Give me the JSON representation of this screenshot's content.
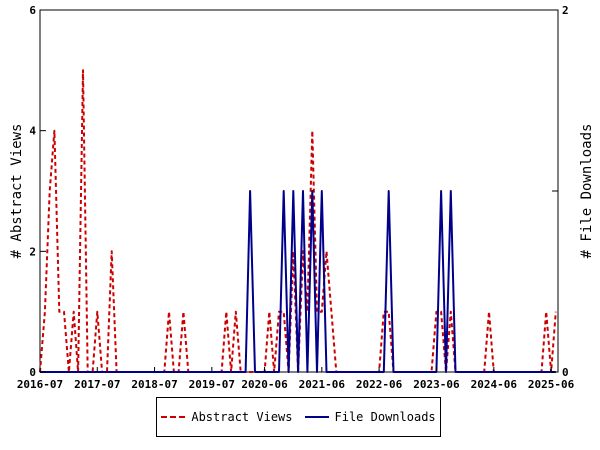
{
  "chart_data": {
    "type": "line",
    "x_labels": [
      "2016-07",
      "2017-07",
      "2018-07",
      "2019-07",
      "2020-06",
      "2021-06",
      "2022-06",
      "2023-06",
      "2024-06",
      "2025-06"
    ],
    "x_range": [
      "2016-07-01",
      "2025-07-15"
    ],
    "left_axis": {
      "label": "# Abstract Views",
      "ylim": [
        0,
        6
      ],
      "ticks": [
        0,
        2,
        4,
        6
      ]
    },
    "right_axis": {
      "label": "# File Downloads",
      "ylim": [
        0,
        2
      ],
      "ticks": [
        0,
        1,
        2
      ]
    },
    "series": [
      {
        "name": "Abstract Views",
        "axis": "left",
        "color": "#cc0000",
        "style": "dashed",
        "points": [
          [
            "2016-07",
            0
          ],
          [
            "2016-08",
            1
          ],
          [
            "2016-09",
            3
          ],
          [
            "2016-10",
            4
          ],
          [
            "2016-11",
            1
          ],
          [
            "2016-12",
            1
          ],
          [
            "2017-01",
            0
          ],
          [
            "2017-02",
            1
          ],
          [
            "2017-03",
            0
          ],
          [
            "2017-04",
            5
          ],
          [
            "2017-05",
            0
          ],
          [
            "2017-06",
            0
          ],
          [
            "2017-07",
            1
          ],
          [
            "2017-08",
            0
          ],
          [
            "2017-09",
            0
          ],
          [
            "2017-10",
            2
          ],
          [
            "2017-11",
            0
          ],
          [
            "2018-09",
            0
          ],
          [
            "2018-10",
            1
          ],
          [
            "2018-11",
            0
          ],
          [
            "2018-12",
            0
          ],
          [
            "2019-01",
            1
          ],
          [
            "2019-02",
            0
          ],
          [
            "2019-09",
            0
          ],
          [
            "2019-10",
            1
          ],
          [
            "2019-11",
            0
          ],
          [
            "2019-12",
            1
          ],
          [
            "2020-01",
            0
          ],
          [
            "2020-06",
            0
          ],
          [
            "2020-07",
            1
          ],
          [
            "2020-08",
            0
          ],
          [
            "2020-09",
            1
          ],
          [
            "2020-10",
            1
          ],
          [
            "2020-11",
            0
          ],
          [
            "2020-12",
            2
          ],
          [
            "2021-01",
            0
          ],
          [
            "2021-02",
            2
          ],
          [
            "2021-03",
            1
          ],
          [
            "2021-04",
            4
          ],
          [
            "2021-05",
            1
          ],
          [
            "2021-06",
            1
          ],
          [
            "2021-07",
            2
          ],
          [
            "2021-08",
            1
          ],
          [
            "2021-09",
            0
          ],
          [
            "2022-06",
            0
          ],
          [
            "2022-07",
            1
          ],
          [
            "2022-08",
            1
          ],
          [
            "2022-09",
            0
          ],
          [
            "2023-05",
            0
          ],
          [
            "2023-06",
            1
          ],
          [
            "2023-07",
            1
          ],
          [
            "2023-08",
            0
          ],
          [
            "2023-09",
            1
          ],
          [
            "2023-10",
            0
          ],
          [
            "2024-04",
            0
          ],
          [
            "2024-05",
            1
          ],
          [
            "2024-06",
            0
          ],
          [
            "2025-04",
            0
          ],
          [
            "2025-05",
            1
          ],
          [
            "2025-06",
            0
          ],
          [
            "2025-07",
            1
          ]
        ]
      },
      {
        "name": "File Downloads",
        "axis": "right",
        "color": "#00008b",
        "style": "solid",
        "points": [
          [
            "2016-07",
            0
          ],
          [
            "2020-02",
            0
          ],
          [
            "2020-03",
            1
          ],
          [
            "2020-04",
            0
          ],
          [
            "2020-05",
            0
          ],
          [
            "2020-09",
            0
          ],
          [
            "2020-10",
            1
          ],
          [
            "2020-11",
            0
          ],
          [
            "2020-12",
            1
          ],
          [
            "2021-01",
            0
          ],
          [
            "2021-02",
            1
          ],
          [
            "2021-03",
            0
          ],
          [
            "2021-04",
            1
          ],
          [
            "2021-05",
            0
          ],
          [
            "2021-06",
            1
          ],
          [
            "2021-07",
            0
          ],
          [
            "2022-07",
            0
          ],
          [
            "2022-08",
            1
          ],
          [
            "2022-09",
            0
          ],
          [
            "2023-06",
            0
          ],
          [
            "2023-07",
            1
          ],
          [
            "2023-08",
            0
          ],
          [
            "2023-09",
            1
          ],
          [
            "2023-10",
            0
          ],
          [
            "2025-07",
            0
          ]
        ]
      }
    ],
    "legend": {
      "position": "bottom-center",
      "entries": [
        "Abstract Views",
        "File Downloads"
      ]
    },
    "grid": false
  }
}
